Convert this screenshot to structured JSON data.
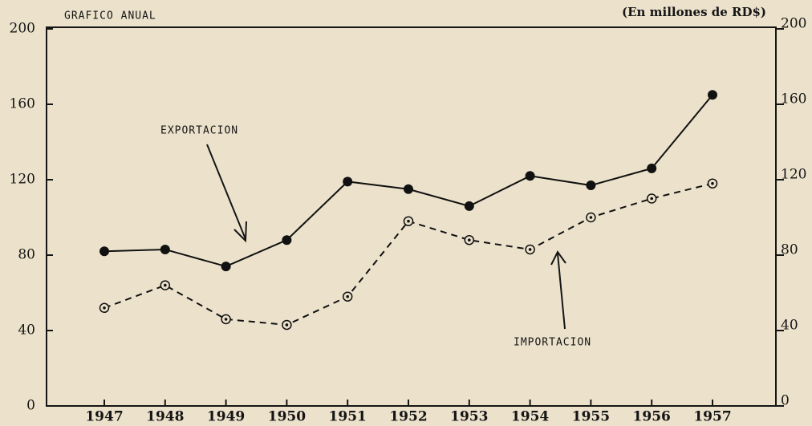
{
  "chart_data": {
    "type": "line",
    "title": "GRAFICO ANUAL",
    "subtitle": "(En millones de RD$)",
    "categories": [
      "1947",
      "1948",
      "1949",
      "1950",
      "1951",
      "1952",
      "1953",
      "1954",
      "1955",
      "1956",
      "1957"
    ],
    "series": [
      {
        "name": "EXPORTACION",
        "color": "#111111",
        "line_style": "solid",
        "marker": "filled",
        "values": [
          82,
          83,
          74,
          88,
          119,
          115,
          106,
          122,
          117,
          126,
          165
        ]
      },
      {
        "name": "IMPORTACION",
        "color": "#111111",
        "line_style": "dashed",
        "marker": "open",
        "values": [
          52,
          64,
          46,
          43,
          58,
          98,
          88,
          83,
          100,
          110,
          118
        ]
      }
    ],
    "ylim": [
      0,
      200
    ],
    "yticks": [
      0,
      40,
      80,
      120,
      160,
      200
    ],
    "y2lim": [
      0,
      200
    ],
    "y2ticks": [
      0,
      40,
      80,
      120,
      160,
      200
    ],
    "grid": false
  }
}
